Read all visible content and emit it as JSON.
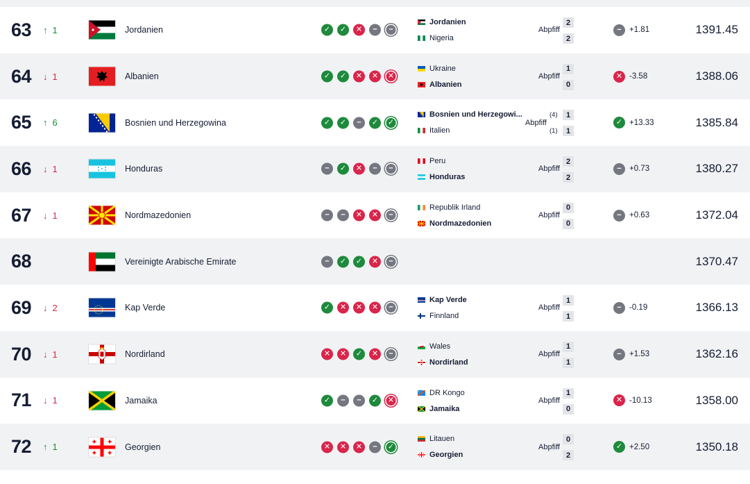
{
  "rows": [
    {
      "rank": "63",
      "dir": "up",
      "change": "1",
      "team": "Jordanien",
      "flag": "jordan",
      "form": [
        "W",
        "W",
        "L",
        "D",
        "D"
      ],
      "match": {
        "home": {
          "name": "Jordanien",
          "flag": "jordan",
          "winner": true
        },
        "away": {
          "name": "Nigeria",
          "flag": "nigeria",
          "winner": false
        },
        "status": "Abpfiff",
        "home_score": "2",
        "away_score": "2",
        "home_pens": "",
        "away_pens": ""
      },
      "points_result": "D",
      "points_change": "+1.81",
      "total": "1391.45"
    },
    {
      "rank": "64",
      "dir": "down",
      "change": "1",
      "team": "Albanien",
      "flag": "albania",
      "form": [
        "W",
        "W",
        "L",
        "L",
        "L"
      ],
      "match": {
        "home": {
          "name": "Ukraine",
          "flag": "ukraine",
          "winner": false
        },
        "away": {
          "name": "Albanien",
          "flag": "albania",
          "winner": true
        },
        "status": "Abpfiff",
        "home_score": "1",
        "away_score": "0",
        "home_pens": "",
        "away_pens": ""
      },
      "points_result": "L",
      "points_change": "-3.58",
      "total": "1388.06"
    },
    {
      "rank": "65",
      "dir": "up",
      "change": "6",
      "team": "Bosnien und Herzegowina",
      "flag": "bosnia",
      "form": [
        "W",
        "W",
        "D",
        "W",
        "W"
      ],
      "match": {
        "home": {
          "name": "Bosnien und Herzegowi...",
          "flag": "bosnia",
          "winner": true
        },
        "away": {
          "name": "Italien",
          "flag": "italy",
          "winner": false
        },
        "status": "Abpfiff",
        "home_score": "1",
        "away_score": "1",
        "home_pens": "(4)",
        "away_pens": "(1)"
      },
      "points_result": "W",
      "points_change": "+13.33",
      "total": "1385.84"
    },
    {
      "rank": "66",
      "dir": "down",
      "change": "1",
      "team": "Honduras",
      "flag": "honduras",
      "form": [
        "D",
        "W",
        "L",
        "D",
        "D"
      ],
      "match": {
        "home": {
          "name": "Peru",
          "flag": "peru",
          "winner": false
        },
        "away": {
          "name": "Honduras",
          "flag": "honduras",
          "winner": true
        },
        "status": "Abpfiff",
        "home_score": "2",
        "away_score": "2",
        "home_pens": "",
        "away_pens": ""
      },
      "points_result": "D",
      "points_change": "+0.73",
      "total": "1380.27"
    },
    {
      "rank": "67",
      "dir": "down",
      "change": "1",
      "team": "Nordmazedonien",
      "flag": "macedonia",
      "form": [
        "D",
        "D",
        "L",
        "L",
        "D"
      ],
      "match": {
        "home": {
          "name": "Republik Irland",
          "flag": "ireland",
          "winner": false
        },
        "away": {
          "name": "Nordmazedonien",
          "flag": "macedonia",
          "winner": true
        },
        "status": "Abpfiff",
        "home_score": "0",
        "away_score": "0",
        "home_pens": "",
        "away_pens": ""
      },
      "points_result": "D",
      "points_change": "+0.63",
      "total": "1372.04"
    },
    {
      "rank": "68",
      "dir": "",
      "change": "",
      "team": "Vereinigte Arabische Emirate",
      "flag": "uae",
      "form": [
        "D",
        "W",
        "W",
        "L",
        "D"
      ],
      "match": null,
      "points_result": "",
      "points_change": "",
      "total": "1370.47"
    },
    {
      "rank": "69",
      "dir": "down",
      "change": "2",
      "team": "Kap Verde",
      "flag": "capeverde",
      "form": [
        "W",
        "L",
        "L",
        "L",
        "D"
      ],
      "match": {
        "home": {
          "name": "Kap Verde",
          "flag": "capeverde",
          "winner": true
        },
        "away": {
          "name": "Finnland",
          "flag": "finland",
          "winner": false
        },
        "status": "Abpfiff",
        "home_score": "1",
        "away_score": "1",
        "home_pens": "",
        "away_pens": ""
      },
      "points_result": "D",
      "points_change": "-0.19",
      "total": "1366.13"
    },
    {
      "rank": "70",
      "dir": "down",
      "change": "1",
      "team": "Nordirland",
      "flag": "nireland",
      "form": [
        "L",
        "L",
        "W",
        "L",
        "D"
      ],
      "match": {
        "home": {
          "name": "Wales",
          "flag": "wales",
          "winner": false
        },
        "away": {
          "name": "Nordirland",
          "flag": "nireland",
          "winner": true
        },
        "status": "Abpfiff",
        "home_score": "1",
        "away_score": "1",
        "home_pens": "",
        "away_pens": ""
      },
      "points_result": "D",
      "points_change": "+1.53",
      "total": "1362.16"
    },
    {
      "rank": "71",
      "dir": "down",
      "change": "1",
      "team": "Jamaika",
      "flag": "jamaica",
      "form": [
        "W",
        "D",
        "D",
        "W",
        "L"
      ],
      "match": {
        "home": {
          "name": "DR Kongo",
          "flag": "drcongo",
          "winner": false
        },
        "away": {
          "name": "Jamaika",
          "flag": "jamaica",
          "winner": true
        },
        "status": "Abpfiff",
        "home_score": "1",
        "away_score": "0",
        "home_pens": "",
        "away_pens": ""
      },
      "points_result": "L",
      "points_change": "-10.13",
      "total": "1358.00"
    },
    {
      "rank": "72",
      "dir": "up",
      "change": "1",
      "team": "Georgien",
      "flag": "georgia",
      "form": [
        "L",
        "L",
        "L",
        "D",
        "W"
      ],
      "match": {
        "home": {
          "name": "Litauen",
          "flag": "lithuania",
          "winner": false
        },
        "away": {
          "name": "Georgien",
          "flag": "georgia",
          "winner": true
        },
        "status": "Abpfiff",
        "home_score": "0",
        "away_score": "2",
        "home_pens": "",
        "away_pens": ""
      },
      "points_result": "W",
      "points_change": "+2.50",
      "total": "1350.18"
    }
  ],
  "icons": {
    "up": "arrow-up-icon",
    "down": "arrow-down-icon",
    "W": "check-icon",
    "L": "cross-icon",
    "D": "minus-icon"
  },
  "colors": {
    "win": "#1e8a3c",
    "loss": "#d9254b",
    "draw": "#74777f",
    "text": "#151d33",
    "row_alt": "#f1f2f4"
  }
}
